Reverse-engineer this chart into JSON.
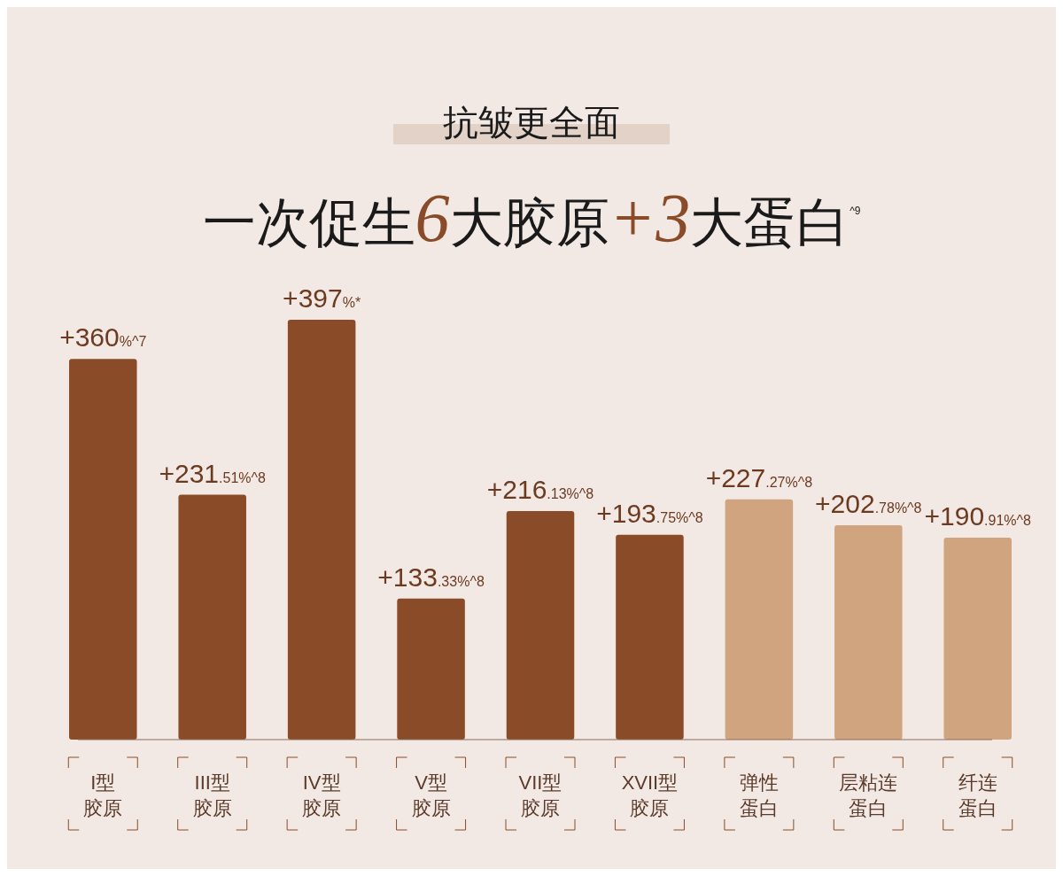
{
  "chart_data": {
    "type": "bar",
    "title": "抗皱更全面",
    "subtitle": "一次促生6大胶原+3大蛋白$^{^9}$",
    "categories": [
      "I型胶原",
      "III型胶原",
      "IV型胶原",
      "V型胶原",
      "VII型胶原",
      "XVII型胶原",
      "弹性蛋白",
      "层粘连蛋白",
      "纤连蛋白"
    ],
    "values": [
      360,
      231.51,
      397,
      133.33,
      216.13,
      193.75,
      227.27,
      202.78,
      190.91
    ],
    "colors": [
      "#8a4b28",
      "#8a4b28",
      "#8a4b28",
      "#8a4b28",
      "#8a4b28",
      "#8a4b28",
      "#d0a47e",
      "#d0a47e",
      "#d0a47e"
    ],
    "value_labels": [
      "+360%^7",
      "+231.51%^8",
      "+397%*",
      "+133.33%^8",
      "+216.13%^8",
      "+193.75%^8",
      "+227.27%^8",
      "+202.78%^8",
      "+190.91%^8"
    ]
  }
}
